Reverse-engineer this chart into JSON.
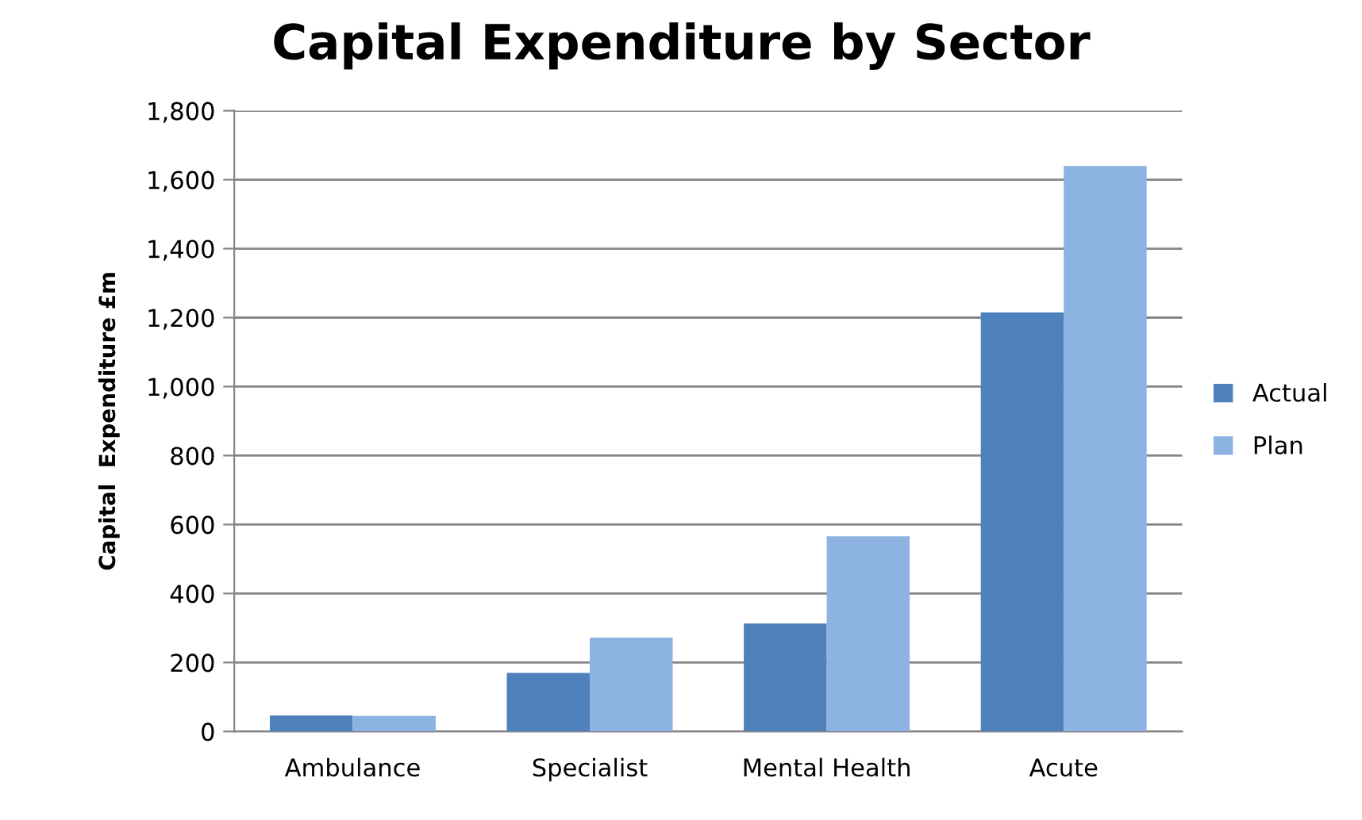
{
  "chart_data": {
    "type": "bar",
    "title": "Capital Expenditure by Sector",
    "ylabel": "Capital  Expenditure £m",
    "categories": [
      "Ambulance",
      "Specialist",
      "Mental Health",
      "Acute"
    ],
    "series": [
      {
        "name": "Actual",
        "color": "#4f81bd",
        "values": [
          46,
          170,
          313,
          1215
        ]
      },
      {
        "name": "Plan",
        "color": "#8db3e2",
        "values": [
          45,
          272,
          566,
          1640
        ]
      }
    ],
    "ylim": [
      0,
      1800
    ],
    "yticks": [
      {
        "value": 0,
        "label": "0"
      },
      {
        "value": 200,
        "label": "200"
      },
      {
        "value": 400,
        "label": "400"
      },
      {
        "value": 600,
        "label": "600"
      },
      {
        "value": 800,
        "label": "800"
      },
      {
        "value": 1000,
        "label": "1,000"
      },
      {
        "value": 1200,
        "label": "1,200"
      },
      {
        "value": 1400,
        "label": "1,400"
      },
      {
        "value": 1600,
        "label": "1,600"
      },
      {
        "value": 1800,
        "label": "1,800"
      }
    ],
    "grid": "y",
    "legend": "right"
  }
}
